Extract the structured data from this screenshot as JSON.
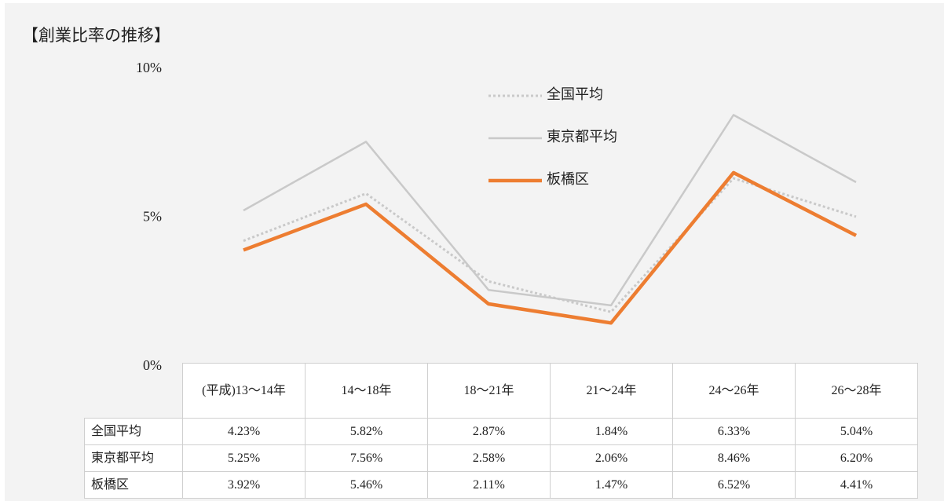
{
  "chart_data": {
    "type": "line",
    "title": "【創業比率の推移】",
    "categories": [
      "(平成)13〜14年",
      "14〜18年",
      "18〜21年",
      "21〜24年",
      "24〜26年",
      "26〜28年"
    ],
    "series": [
      {
        "name": "全国平均",
        "color": "#c9c9c9",
        "dash": "dotted",
        "values": [
          4.23,
          5.82,
          2.87,
          1.84,
          6.33,
          5.04
        ],
        "value_labels": [
          "4.23%",
          "5.82%",
          "2.87%",
          "1.84%",
          "6.33%",
          "5.04%"
        ]
      },
      {
        "name": "東京都平均",
        "color": "#c9c9c9",
        "dash": "solid",
        "values": [
          5.25,
          7.56,
          2.58,
          2.06,
          8.46,
          6.2
        ],
        "value_labels": [
          "5.25%",
          "7.56%",
          "2.58%",
          "2.06%",
          "8.46%",
          "6.20%"
        ]
      },
      {
        "name": "板橋区",
        "color": "#ed7d31",
        "dash": "solid",
        "values": [
          3.92,
          5.46,
          2.11,
          1.47,
          6.52,
          4.41
        ],
        "value_labels": [
          "3.92%",
          "5.46%",
          "2.11%",
          "1.47%",
          "6.52%",
          "4.41%"
        ]
      }
    ],
    "ylim": [
      0,
      10
    ],
    "yticks": [
      {
        "value": 0,
        "label": "0%"
      },
      {
        "value": 5,
        "label": "5%"
      },
      {
        "value": 10,
        "label": "10%"
      }
    ],
    "grid": false
  }
}
